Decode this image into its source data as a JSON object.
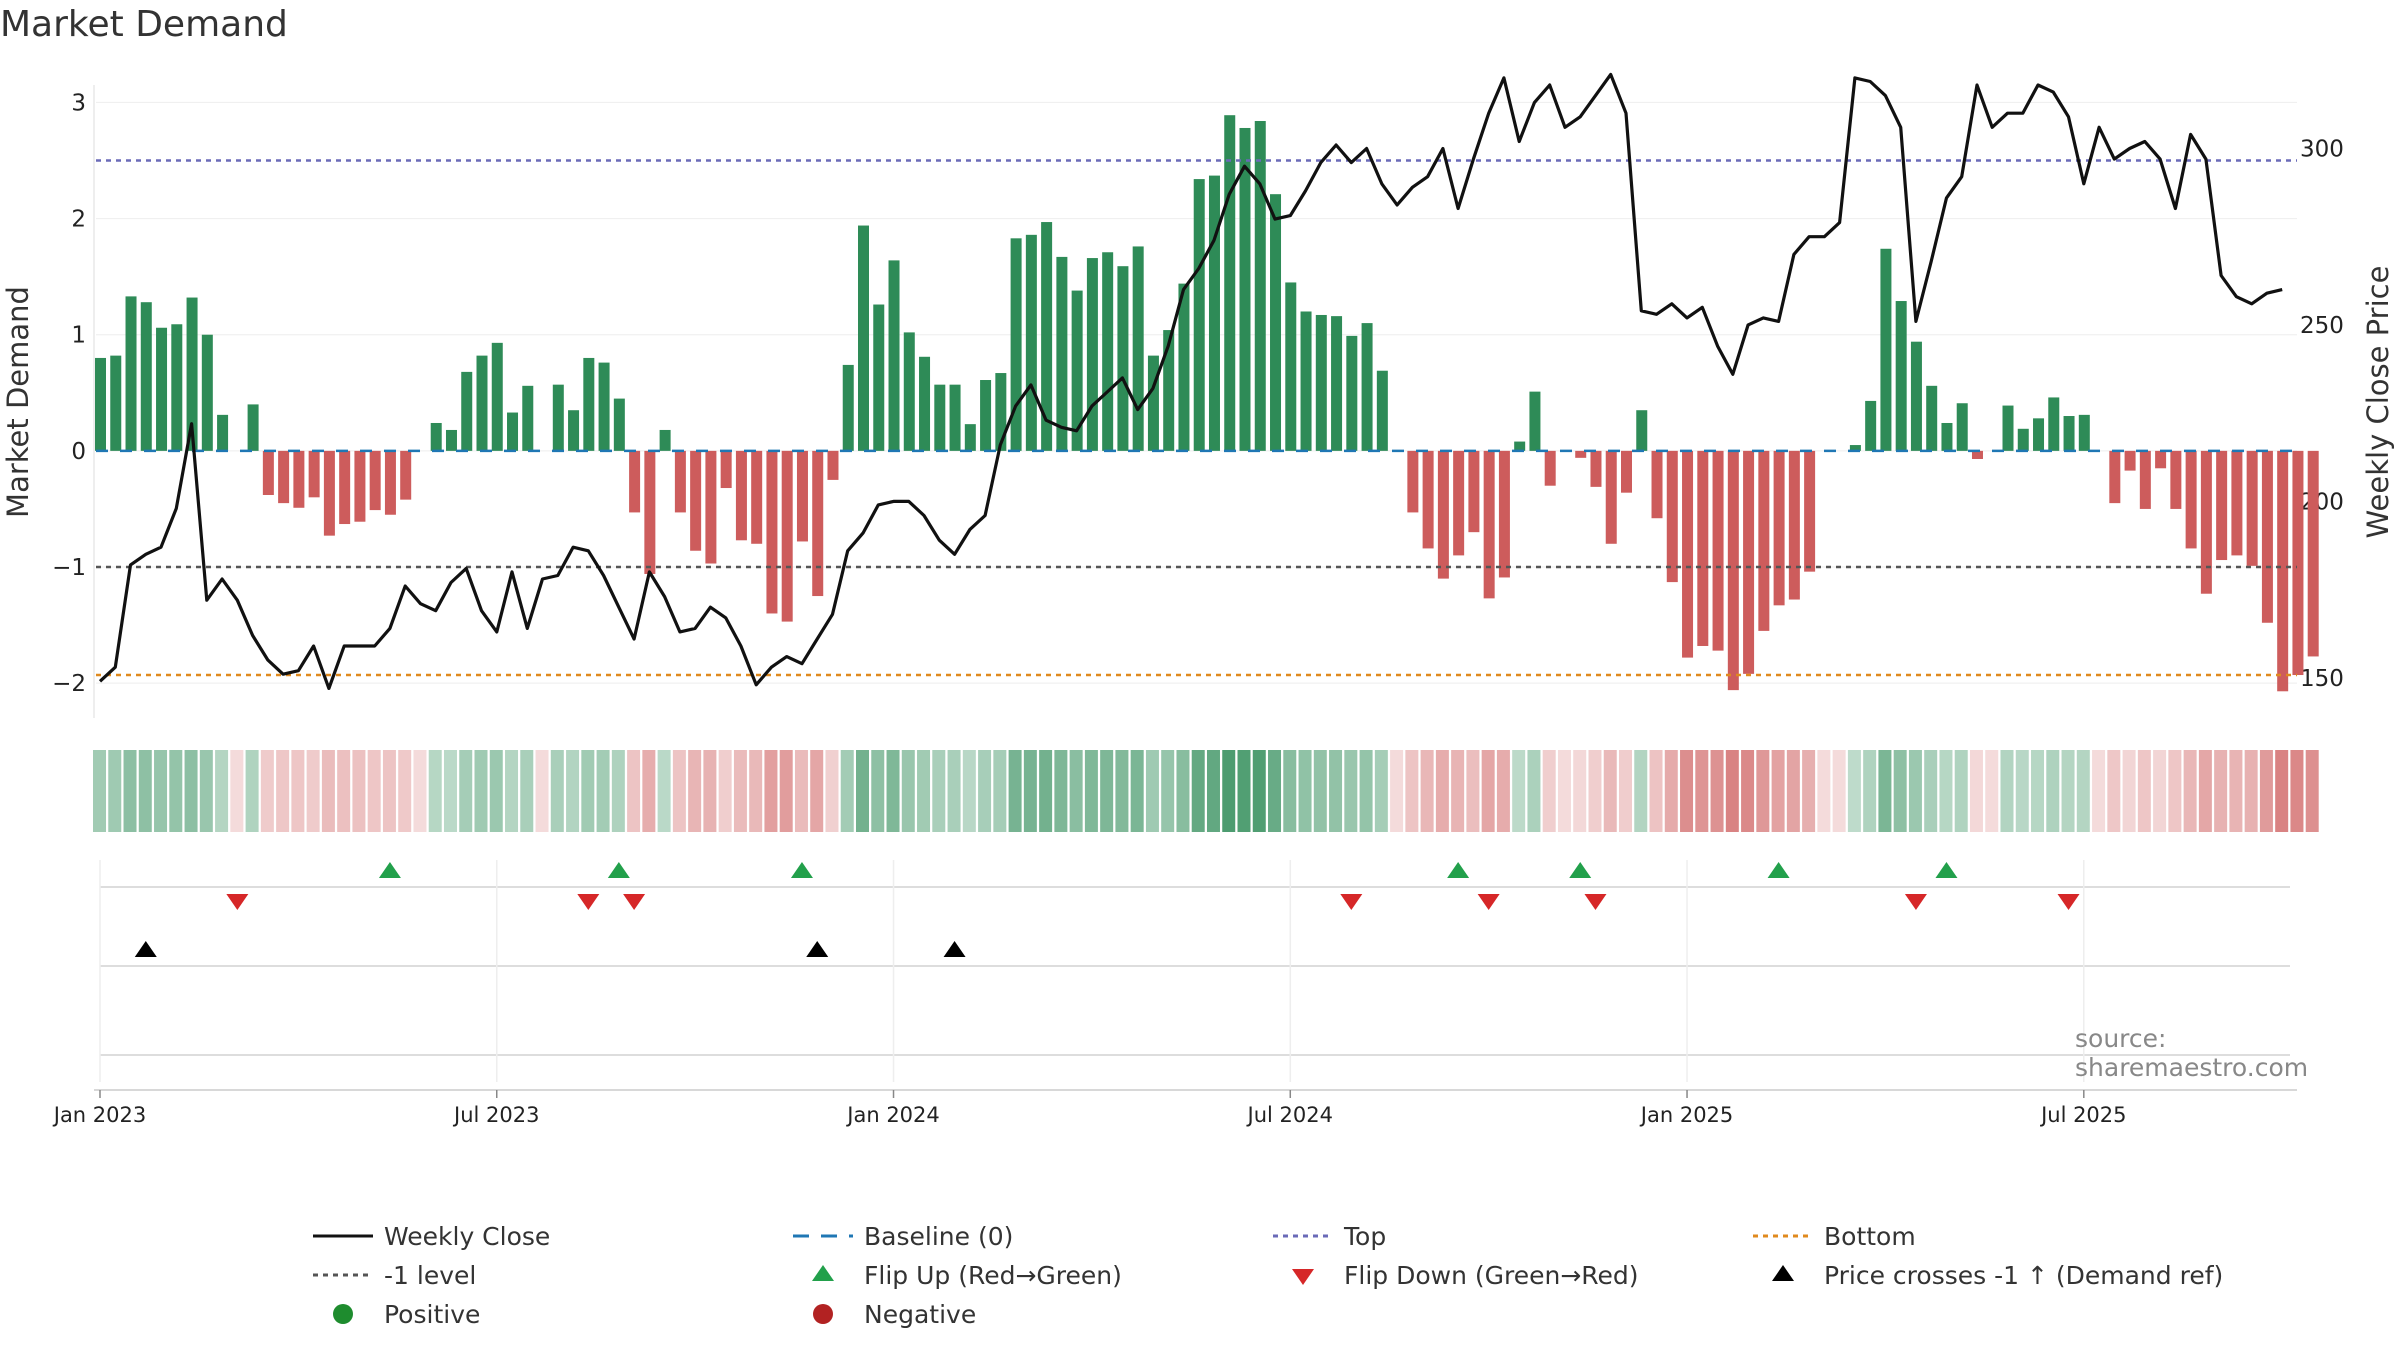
{
  "title": "Market Demand",
  "source": "source: sharemaestro.com",
  "colors": {
    "positive": "#2e8b57",
    "negative": "#cd5c5c",
    "close": "#111111",
    "baseline": "#1f77b4",
    "top": "#6a6ab8",
    "bottom": "#e08a1e",
    "minus1": "#555555",
    "flip_up": "#22a04b",
    "flip_down": "#d62728",
    "cross": "#000000",
    "pos_dot": "#1e8c2e",
    "neg_dot": "#b22222"
  },
  "chart_data": {
    "type": "bar",
    "title": "Market Demand",
    "ylabel": "Market Demand",
    "y2label": "Weekly Close Price",
    "ylim": [
      -2.3,
      3.15
    ],
    "y2lim": [
      138.6,
      318
    ],
    "yticks": [
      "3",
      "2",
      "1",
      "0",
      "−1",
      "−2"
    ],
    "y2ticks": [
      "300",
      "250",
      "200",
      "150"
    ],
    "date_ticks": [
      {
        "label": "Jan 2023",
        "week": 2
      },
      {
        "label": "Jul 2023",
        "week": 28
      },
      {
        "label": "Jan 2024",
        "week": 54
      },
      {
        "label": "Jul 2024",
        "week": 80
      },
      {
        "label": "Jan 2025",
        "week": 106
      },
      {
        "label": "Jul 2025",
        "week": 132
      }
    ],
    "reference_lines": {
      "top": 2.5,
      "minus1": -1,
      "bottom": -1.93,
      "baseline": 0
    },
    "demand": [
      0.8,
      0.82,
      1.33,
      1.28,
      1.06,
      1.09,
      1.32,
      1.0,
      0.31,
      0,
      0.4,
      -0.38,
      -0.45,
      -0.49,
      -0.4,
      -0.73,
      -0.63,
      -0.61,
      -0.51,
      -0.55,
      -0.42,
      0,
      0.24,
      0.18,
      0.68,
      0.82,
      0.93,
      0.33,
      0.56,
      0,
      0.57,
      0.35,
      0.8,
      0.76,
      0.45,
      -0.53,
      -1.06,
      0.18,
      -0.53,
      -0.86,
      -0.97,
      -0.32,
      -0.77,
      -0.8,
      -1.4,
      -1.47,
      -0.78,
      -1.25,
      -0.25,
      0.74,
      1.94,
      1.26,
      1.64,
      1.02,
      0.81,
      0.57,
      0.57,
      0.23,
      0.61,
      0.67,
      1.83,
      1.86,
      1.97,
      1.67,
      1.38,
      1.66,
      1.71,
      1.59,
      1.76,
      0.82,
      1.04,
      1.44,
      2.34,
      2.37,
      2.89,
      2.78,
      2.84,
      2.21,
      1.45,
      1.2,
      1.17,
      1.16,
      0.99,
      1.1,
      0.69,
      0,
      -0.53,
      -0.84,
      -1.1,
      -0.9,
      -0.7,
      -1.27,
      -1.09,
      0.08,
      0.51,
      -0.3,
      0,
      -0.06,
      -0.31,
      -0.8,
      -0.36,
      0.35,
      -0.58,
      -1.13,
      -1.78,
      -1.68,
      -1.72,
      -2.06,
      -1.92,
      -1.55,
      -1.33,
      -1.28,
      -1.04,
      0,
      0,
      0.05,
      0.43,
      1.74,
      1.29,
      0.94,
      0.56,
      0.24,
      0.41,
      -0.07,
      0,
      0.39,
      0.19,
      0.28,
      0.46,
      0.3,
      0.31,
      0,
      -0.45,
      -0.17,
      -0.5,
      -0.15,
      -0.5,
      -0.84,
      -1.23,
      -0.94,
      -0.9,
      -0.99,
      -1.48,
      -2.07,
      -1.93,
      -1.77
    ],
    "close": [
      149,
      153,
      182,
      185,
      187,
      198,
      222,
      172,
      178,
      172,
      162,
      155,
      151,
      152,
      159,
      147,
      159,
      159,
      159,
      164,
      176,
      171,
      169,
      177,
      181,
      169,
      163,
      180,
      164,
      178,
      179,
      187,
      186,
      179,
      170,
      161,
      180,
      173,
      163,
      164,
      170,
      167,
      159,
      148,
      153,
      156,
      154,
      161,
      168,
      186,
      191,
      199,
      200,
      200,
      196,
      189,
      185,
      192,
      196,
      216,
      227,
      233,
      223,
      221,
      220,
      227,
      231,
      235,
      226,
      232,
      244,
      260,
      266,
      274,
      287,
      295,
      290,
      280,
      281,
      288,
      296,
      301,
      296,
      300,
      290,
      284,
      289,
      292,
      300,
      283,
      297,
      310,
      320,
      302,
      313,
      318,
      306,
      309,
      315,
      321,
      310,
      254,
      253,
      256,
      252,
      255,
      244,
      236,
      250,
      252,
      251,
      270,
      275,
      275,
      279,
      320,
      319,
      315,
      306,
      251,
      268,
      286,
      292,
      318,
      306,
      310,
      310,
      318,
      316,
      309,
      290,
      306,
      297,
      300,
      302,
      297,
      283,
      304,
      297,
      264,
      258,
      256,
      259,
      260
    ],
    "flip_up_weeks": [
      21,
      36,
      48,
      91,
      99,
      112,
      123
    ],
    "flip_down_weeks": [
      11,
      34,
      37,
      84,
      93,
      100,
      121,
      131
    ],
    "price_cross_weeks": [
      5,
      49,
      58
    ]
  },
  "legend": [
    {
      "key": "close",
      "label": "Weekly Close"
    },
    {
      "key": "baseline",
      "label": "Baseline (0)"
    },
    {
      "key": "top",
      "label": "Top"
    },
    {
      "key": "bottom",
      "label": "Bottom"
    },
    {
      "key": "minus1",
      "label": "-1 level"
    },
    {
      "key": "flip_up",
      "label": "Flip Up (Red→Green)"
    },
    {
      "key": "flip_down",
      "label": "Flip Down (Green→Red)"
    },
    {
      "key": "cross",
      "label": "Price crosses -1 ↑ (Demand ref)"
    },
    {
      "key": "pos_dot",
      "label": "Positive"
    },
    {
      "key": "neg_dot",
      "label": "Negative"
    }
  ]
}
